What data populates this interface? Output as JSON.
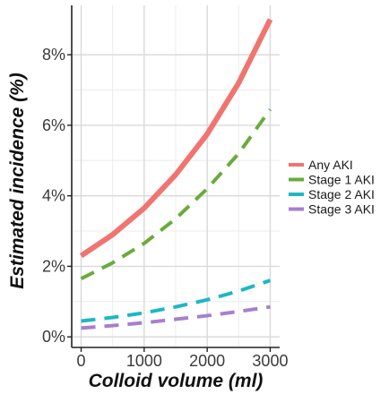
{
  "chart_data": {
    "type": "line",
    "xlabel": "Colloid volume (ml)",
    "ylabel": "Estimated incidence (%)",
    "xlim": [
      -150,
      3150
    ],
    "ylim": [
      -0.3,
      9.4
    ],
    "x_ticks": [
      0,
      1000,
      2000,
      3000
    ],
    "x_tick_labels": [
      "0",
      "1000",
      "2000",
      "3000"
    ],
    "y_ticks": [
      0,
      2,
      4,
      6,
      8
    ],
    "y_tick_labels": [
      "0%",
      "2%",
      "4%",
      "6%",
      "8%"
    ],
    "grid": true,
    "legend_position": "right",
    "series": [
      {
        "name": "Any AKI",
        "color": "#f07470",
        "style": "solid",
        "x": [
          0,
          500,
          1000,
          1500,
          2000,
          2500,
          3000
        ],
        "y": [
          2.3,
          2.9,
          3.65,
          4.6,
          5.75,
          7.2,
          9.0
        ]
      },
      {
        "name": "Stage 1 AKI",
        "color": "#6aab3c",
        "style": "dashed",
        "x": [
          0,
          500,
          1000,
          1500,
          2000,
          2500,
          3000
        ],
        "y": [
          1.65,
          2.1,
          2.65,
          3.35,
          4.2,
          5.2,
          6.45
        ]
      },
      {
        "name": "Stage 2 AKI",
        "color": "#1cb8c4",
        "style": "dashed",
        "x": [
          0,
          500,
          1000,
          1500,
          2000,
          2500,
          3000
        ],
        "y": [
          0.45,
          0.55,
          0.68,
          0.85,
          1.05,
          1.3,
          1.6
        ]
      },
      {
        "name": "Stage 3 AKI",
        "color": "#a67fd0",
        "style": "dashed",
        "x": [
          0,
          500,
          1000,
          1500,
          2000,
          2500,
          3000
        ],
        "y": [
          0.25,
          0.32,
          0.4,
          0.5,
          0.6,
          0.72,
          0.85
        ]
      }
    ]
  }
}
